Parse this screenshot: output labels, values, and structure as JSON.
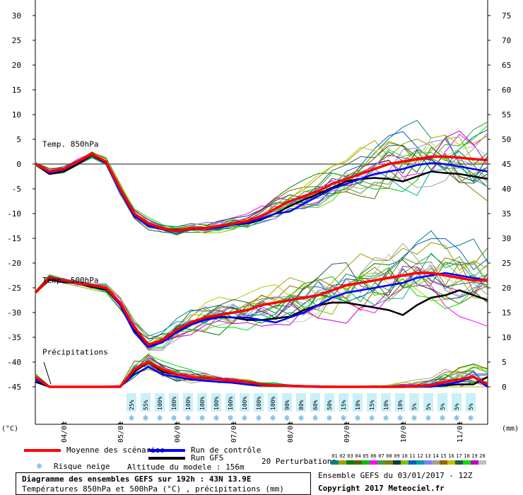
{
  "chart_data": {
    "type": "line",
    "title": "Diagramme des ensembles GEFS sur 192h : 43N 13.9E",
    "subtitle": "Températures 850hPa et 500hPa (°C) , précipitations (mm)",
    "left_axis": {
      "label": "(°C)",
      "ticks": [
        30,
        25,
        20,
        15,
        10,
        5,
        0,
        -5,
        -10,
        -15,
        -20,
        -25,
        -30,
        -35,
        -40,
        -45
      ],
      "range": [
        -45,
        30
      ]
    },
    "right_axis": {
      "label": "(mm)",
      "ticks": [
        75,
        70,
        65,
        60,
        55,
        50,
        45,
        40,
        35,
        30,
        25,
        20,
        15,
        10,
        5,
        0
      ],
      "range": [
        0,
        75
      ]
    },
    "x_range": [
      3.5,
      11.5
    ],
    "date_ticks": [
      {
        "label": "04/01",
        "x": 4
      },
      {
        "label": "05/01",
        "x": 5
      },
      {
        "label": "06/01",
        "x": 6
      },
      {
        "label": "07/01",
        "x": 7
      },
      {
        "label": "08/01",
        "x": 8
      },
      {
        "label": "09/01",
        "x": 9
      },
      {
        "label": "10/01",
        "x": 10
      },
      {
        "label": "11/01",
        "x": 11
      }
    ],
    "panel_labels": [
      "Temp. 850hPa",
      "Temp. 500hPa",
      "Précipitations"
    ],
    "step_x": [
      3.5,
      3.75,
      4,
      4.25,
      4.5,
      4.75,
      5,
      5.25,
      5.5,
      5.75,
      6,
      6.25,
      6.5,
      6.75,
      7,
      7.25,
      7.5,
      7.75,
      8,
      8.25,
      8.5,
      8.75,
      9,
      9.25,
      9.5,
      9.75,
      10,
      10.25,
      10.5,
      10.75,
      11,
      11.25,
      11.5
    ],
    "t850": {
      "mean": [
        0,
        -1.5,
        -1,
        0.5,
        2,
        0.5,
        -5,
        -10,
        -12,
        -13,
        -13.5,
        -13,
        -13,
        -12.5,
        -12,
        -11.5,
        -10.5,
        -9,
        -7.5,
        -6.5,
        -5.5,
        -4,
        -3,
        -2,
        -1,
        0,
        0.5,
        1,
        1.5,
        1.5,
        1.3,
        1,
        0.8
      ],
      "control": [
        0,
        -1.8,
        -1.2,
        0.3,
        2,
        0.3,
        -5.5,
        -10.5,
        -12.5,
        -13.2,
        -13.6,
        -13.2,
        -13.1,
        -12.8,
        -12.2,
        -11.8,
        -11,
        -10,
        -9.6,
        -8,
        -6.5,
        -5,
        -4,
        -3,
        -2,
        -1.5,
        -1,
        -0.2,
        0.2,
        0,
        -0.5,
        -1,
        -1.5
      ],
      "gfs": [
        0,
        -2,
        -1.5,
        0,
        1.8,
        0.2,
        -5.2,
        -10.2,
        -12.2,
        -13,
        -13.3,
        -13,
        -12.9,
        -12.6,
        -12.2,
        -12,
        -11.2,
        -10,
        -8.5,
        -7.2,
        -6,
        -4.8,
        -3.5,
        -3,
        -2.8,
        -3,
        -3.5,
        -2.5,
        -1.5,
        -1.8,
        -2,
        -2.5,
        -3
      ],
      "spread_width": [
        0.6,
        0.8,
        0.8,
        0.8,
        0.8,
        1.0,
        1.2,
        1.2,
        1.2,
        1.2,
        1.2,
        1.3,
        1.4,
        1.5,
        1.6,
        1.8,
        2.0,
        2.4,
        2.8,
        3.2,
        3.6,
        4.0,
        4.5,
        5.0,
        5.5,
        6.0,
        6.5,
        7.0,
        7.2,
        7.5,
        7.8,
        8.0,
        8.2
      ]
    },
    "t500": {
      "mean": [
        -26,
        -23,
        -23.5,
        -24,
        -24.5,
        -25,
        -28,
        -33,
        -36.5,
        -35.5,
        -33.5,
        -32,
        -31,
        -30.5,
        -30,
        -29.5,
        -28.5,
        -28,
        -27.5,
        -27,
        -26.5,
        -25.5,
        -24.5,
        -24,
        -23.5,
        -23,
        -22.5,
        -22,
        -22,
        -22.5,
        -23,
        -23.5,
        -23.5
      ],
      "control": [
        -26,
        -23.2,
        -23.6,
        -24,
        -24.6,
        -25.2,
        -28.5,
        -34,
        -37,
        -36,
        -34,
        -32.5,
        -31.5,
        -31,
        -31,
        -31,
        -31.5,
        -32,
        -31,
        -30,
        -28.5,
        -27,
        -26,
        -25.5,
        -25,
        -24.5,
        -24,
        -23,
        -22.5,
        -22,
        -22.5,
        -23,
        -23.5
      ],
      "gfs": [
        -26,
        -23.4,
        -23.8,
        -24,
        -24.8,
        -25.4,
        -28.2,
        -33.5,
        -36.8,
        -35.8,
        -33.8,
        -32.2,
        -31.2,
        -30.8,
        -31,
        -31.5,
        -31.5,
        -31.2,
        -30.8,
        -29.5,
        -28.5,
        -28,
        -28,
        -28.5,
        -29,
        -29.5,
        -30.5,
        -28.5,
        -27,
        -26.5,
        -25.5,
        -26.5,
        -27.5
      ],
      "spread_width": [
        0.6,
        0.8,
        0.8,
        0.8,
        0.8,
        1.0,
        1.5,
        2.0,
        2.2,
        2.5,
        3.0,
        3.5,
        4.0,
        4.2,
        4.5,
        4.8,
        5.0,
        5.2,
        5.5,
        5.8,
        6.0,
        6.2,
        6.5,
        6.8,
        7.0,
        7.2,
        7.5,
        7.8,
        8.0,
        8.2,
        8.5,
        8.5,
        8.5
      ]
    },
    "precip": {
      "mean": [
        2,
        0,
        0,
        0,
        0,
        0,
        0,
        3.5,
        5,
        3.5,
        2.5,
        2,
        1.8,
        1.5,
        1.2,
        1,
        0.5,
        0.3,
        0.2,
        0.1,
        0,
        0,
        0,
        0,
        0,
        0,
        0,
        0.1,
        0.3,
        1,
        1.5,
        2,
        0.5
      ],
      "control": [
        1.5,
        0,
        0,
        0,
        0,
        0,
        0,
        2.5,
        4,
        2.5,
        2,
        1.5,
        1.2,
        1,
        0.8,
        0.5,
        0.3,
        0.2,
        0.1,
        0,
        0,
        0,
        0,
        0,
        0,
        0,
        0,
        0,
        0,
        0.5,
        1,
        2,
        0
      ],
      "gfs": [
        1,
        0,
        0,
        0,
        0,
        0,
        0,
        3,
        5,
        3,
        2.5,
        2,
        1.8,
        1.6,
        1.3,
        1,
        0.5,
        0.3,
        0.2,
        0.1,
        0,
        0,
        0,
        0,
        0,
        0,
        0,
        0,
        0.1,
        0.3,
        0.5,
        0.5,
        2
      ],
      "spread_width": [
        1.2,
        0.3,
        0.2,
        0.2,
        0.2,
        0.2,
        0.4,
        2.0,
        3.2,
        2.6,
        2.0,
        1.6,
        1.4,
        1.2,
        1.0,
        0.9,
        0.7,
        0.6,
        0.4,
        0.3,
        0.3,
        0.3,
        0.4,
        0.5,
        0.8,
        1.0,
        1.2,
        1.6,
        2.0,
        2.6,
        3.2,
        3.6,
        3.8
      ]
    },
    "snow_risk": [
      {
        "x": 5.2,
        "pct": "25%"
      },
      {
        "x": 5.45,
        "pct": "55%"
      },
      {
        "x": 5.7,
        "pct": "100%"
      },
      {
        "x": 5.95,
        "pct": "100%"
      },
      {
        "x": 6.2,
        "pct": "100%"
      },
      {
        "x": 6.45,
        "pct": "100%"
      },
      {
        "x": 6.7,
        "pct": "100%"
      },
      {
        "x": 6.95,
        "pct": "100%"
      },
      {
        "x": 7.2,
        "pct": "100%"
      },
      {
        "x": 7.45,
        "pct": "100%"
      },
      {
        "x": 7.7,
        "pct": "100%"
      },
      {
        "x": 7.95,
        "pct": "90%"
      },
      {
        "x": 8.2,
        "pct": "80%"
      },
      {
        "x": 8.45,
        "pct": "60%"
      },
      {
        "x": 8.7,
        "pct": "50%"
      },
      {
        "x": 8.95,
        "pct": "15%"
      },
      {
        "x": 9.2,
        "pct": "10%"
      },
      {
        "x": 9.45,
        "pct": "15%"
      },
      {
        "x": 9.7,
        "pct": "10%"
      },
      {
        "x": 9.95,
        "pct": "10%"
      },
      {
        "x": 10.2,
        "pct": "5%"
      },
      {
        "x": 10.45,
        "pct": "5%"
      },
      {
        "x": 10.7,
        "pct": "5%"
      },
      {
        "x": 10.95,
        "pct": "5%"
      },
      {
        "x": 11.2,
        "pct": "5%"
      }
    ]
  },
  "colors": {
    "mean": "#ff0000",
    "control": "#0000ff",
    "gfs": "#000000",
    "zero_line": "#888888",
    "grid": "#000000",
    "snow_box": "#c8f0f8",
    "perturbations": [
      "#008080",
      "#a0a000",
      "#008000",
      "#606000",
      "#00c000",
      "#ff00ff",
      "#40a040",
      "#808000",
      "#004040",
      "#80c000",
      "#0060c0",
      "#00a0a0",
      "#8080ff",
      "#a0a0a0",
      "#a06000",
      "#c0c000",
      "#206040",
      "#00e000",
      "#c000c0",
      "#c0c0c0"
    ]
  },
  "legend": {
    "mean_label": "Moyenne des scénarios",
    "control_label": "Run de contrôle",
    "gfs_label": "Run GFS",
    "snow_label": "Risque neige",
    "altitude": "Altitude du modele : 156m",
    "perturbations_label": "20 Perturbations",
    "perturbation_ids": [
      "01",
      "02",
      "03",
      "04",
      "05",
      "06",
      "07",
      "08",
      "09",
      "10",
      "11",
      "12",
      "13",
      "14",
      "15",
      "16",
      "17",
      "18",
      "19",
      "20"
    ]
  },
  "footer": {
    "title": "Diagramme des ensembles GEFS sur 192h : 43N 13.9E",
    "subtitle": "Températures 850hPa et 500hPa (°C) , précipitations (mm)",
    "run_info": "Ensemble GEFS du 03/01/2017 - 12Z",
    "copyright": "Copyright 2017 Meteociel.fr"
  }
}
